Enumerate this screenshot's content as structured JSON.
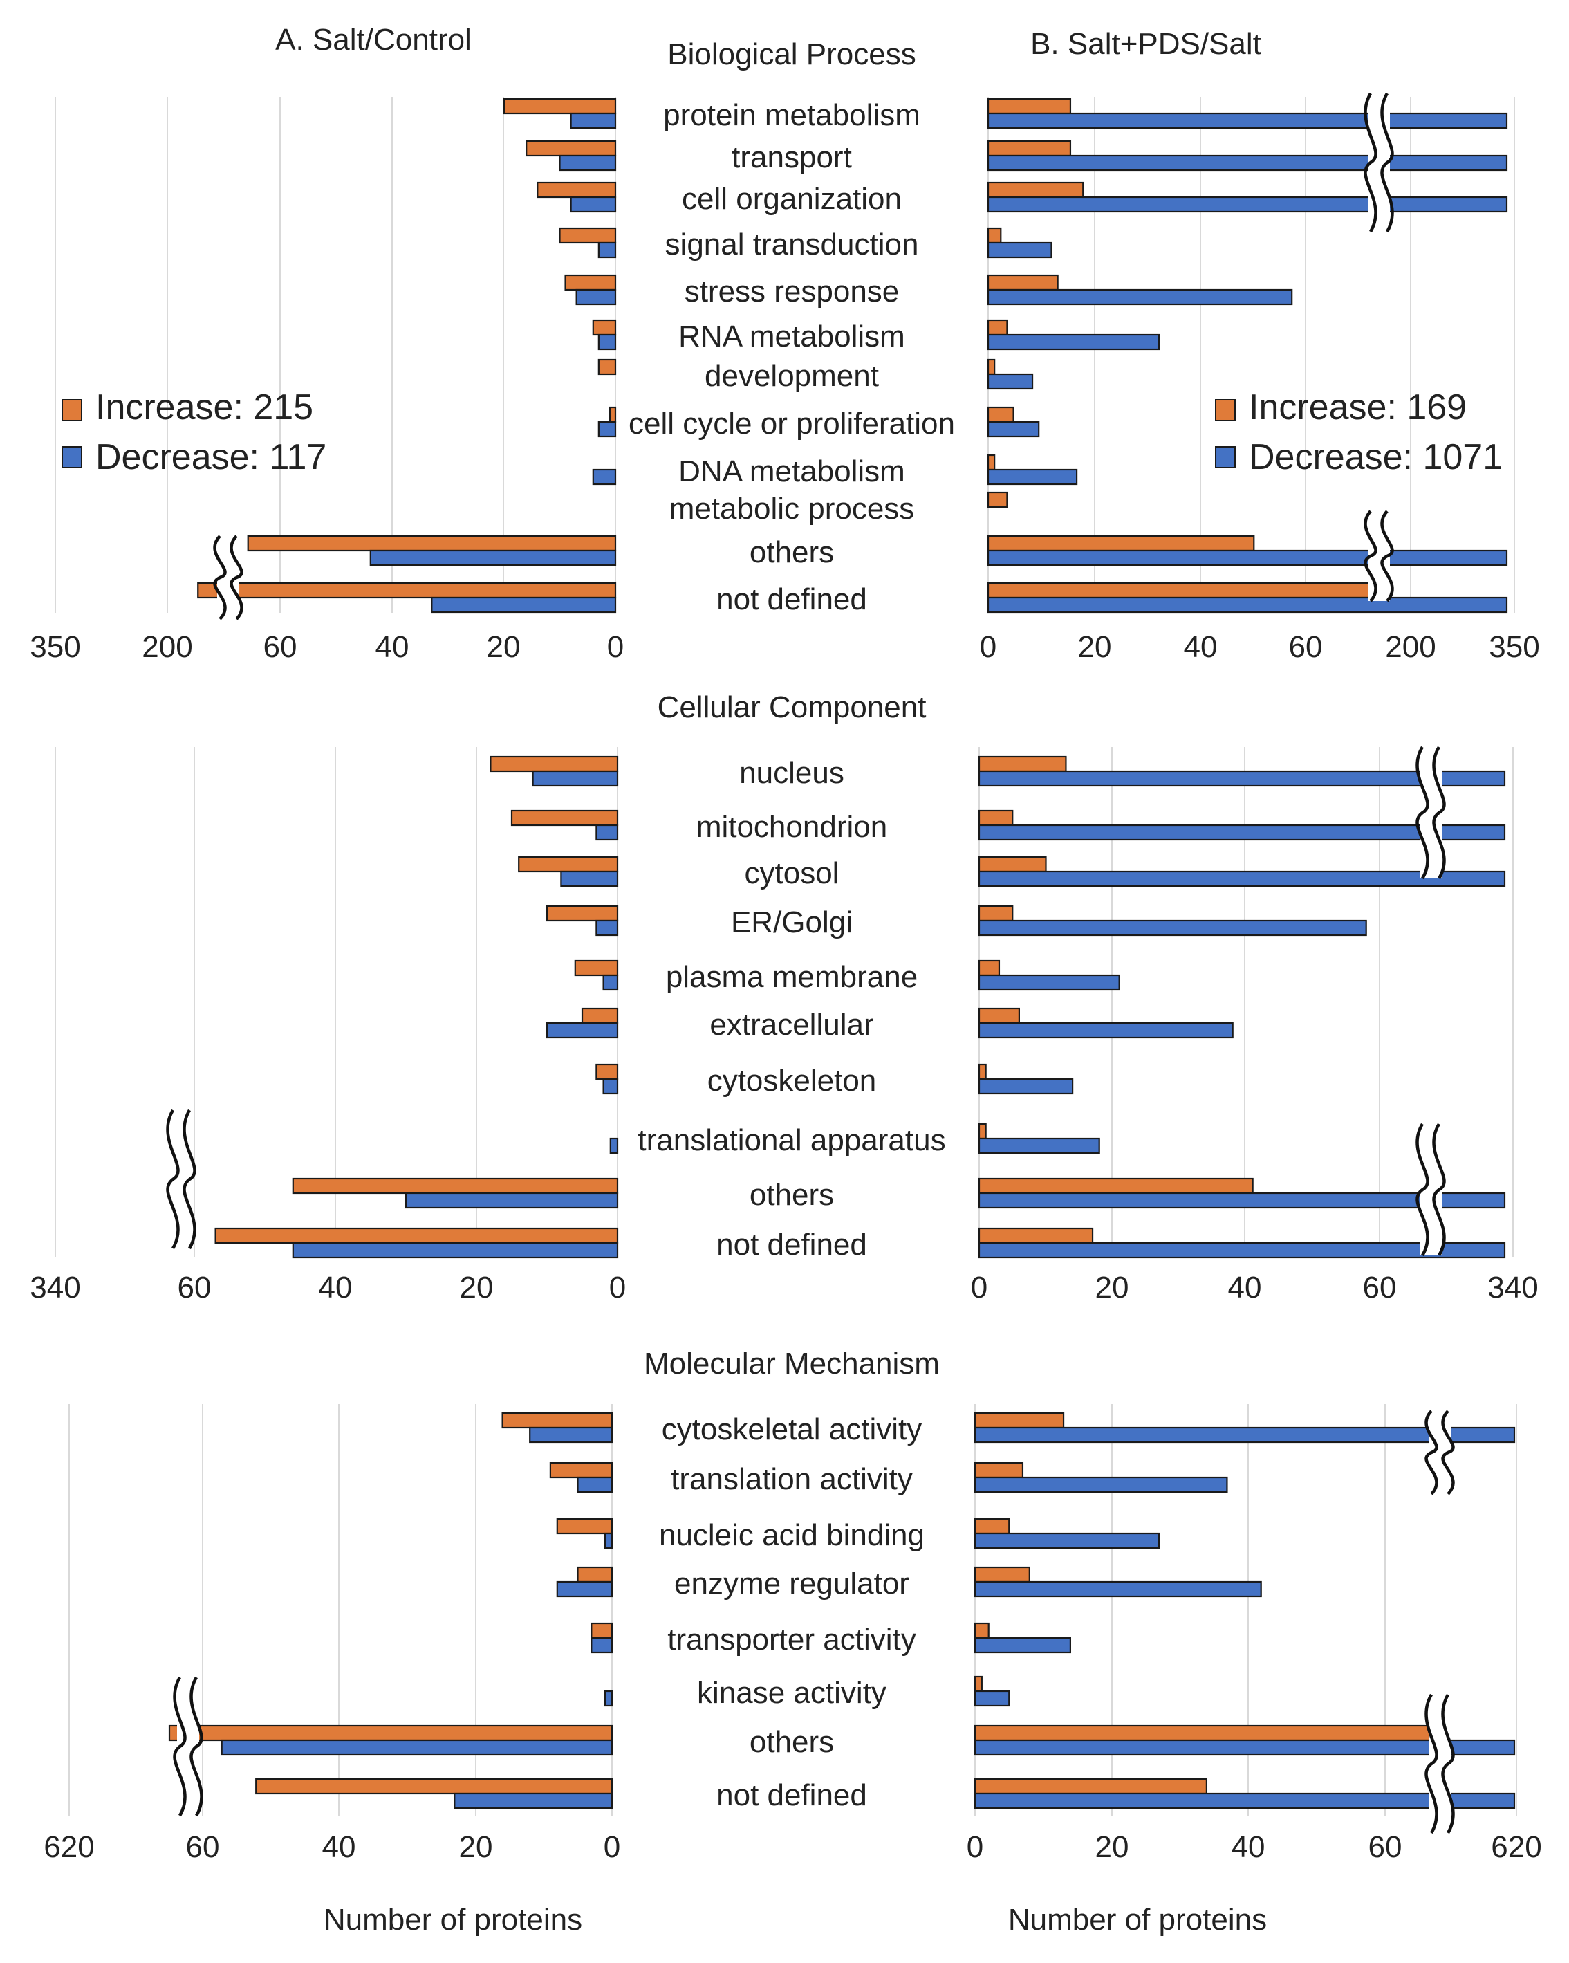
{
  "colors": {
    "increase": "#e07b39",
    "decrease": "#4472c4"
  },
  "panel_titles": {
    "left": "A. Salt/Control",
    "right": "B. Salt+PDS/Salt"
  },
  "legends": {
    "left": {
      "increase": "Increase: 215",
      "decrease": "Decrease: 117"
    },
    "right": {
      "increase": "Increase: 169",
      "decrease": "Decrease: 1071"
    }
  },
  "axis_labels": {
    "left": "Number of proteins",
    "right": "Number of proteins"
  },
  "chart_data": [
    {
      "type": "bar",
      "orientation": "horizontal",
      "title": "Biological Process",
      "categories": [
        "protein metabolism",
        "transport",
        "cell organization",
        "signal transduction",
        "stress response",
        "RNA metabolism",
        "development",
        "cell cycle or proliferation",
        "DNA metabolism",
        "metabolic process",
        "others",
        "not defined"
      ],
      "left": {
        "tick_labels": [
          "350",
          "200",
          "60",
          "40",
          "20",
          "0"
        ],
        "xlim": [
          0,
          70
        ],
        "axis_break": "beyond 60 (compressed to 200–350)",
        "series": [
          {
            "name": "Increase",
            "values": [
              20,
              16,
              14,
              10,
              9,
              4,
              3,
              1,
              0,
              0,
              66,
              75
            ]
          },
          {
            "name": "Decrease",
            "values": [
              8,
              10,
              8,
              3,
              7,
              3,
              0,
              3,
              4,
              0,
              44,
              33
            ]
          }
        ]
      },
      "right": {
        "tick_labels": [
          "0",
          "20",
          "40",
          "60",
          "200",
          "350"
        ],
        "xlim": [
          0,
          70
        ],
        "axis_break": "beyond 60 (compressed to 200–350)",
        "series": [
          {
            "name": "Increase",
            "values": [
              13,
              13,
              15,
              2,
              11,
              3,
              1,
              4,
              1,
              3,
              42,
              61
            ]
          },
          {
            "name": "Decrease",
            "values": [
              215,
              205,
              200,
              10,
              48,
              27,
              7,
              8,
              14,
              0,
              340,
              330
            ]
          }
        ]
      }
    },
    {
      "type": "bar",
      "orientation": "horizontal",
      "title": "Cellular Component",
      "categories": [
        "nucleus",
        "mitochondrion",
        "cytosol",
        "ER/Golgi",
        "plasma membrane",
        "extracellular",
        "cytoskeleton",
        "translational apparatus",
        "others",
        "not defined"
      ],
      "left": {
        "tick_labels": [
          "340",
          "60",
          "40",
          "20",
          "0"
        ],
        "xlim": [
          0,
          70
        ],
        "axis_break": "beyond 60 (compressed to 340)",
        "series": [
          {
            "name": "Increase",
            "values": [
              18,
              15,
              14,
              10,
              6,
              5,
              3,
              0,
              46,
              57
            ]
          },
          {
            "name": "Decrease",
            "values": [
              12,
              3,
              8,
              3,
              2,
              10,
              2,
              1,
              30,
              46
            ]
          }
        ]
      },
      "right": {
        "tick_labels": [
          "0",
          "20",
          "40",
          "60",
          "340"
        ],
        "xlim": [
          0,
          80
        ],
        "axis_break": "beyond 60 (compressed to 340)",
        "series": [
          {
            "name": "Increase",
            "values": [
              13,
              5,
              10,
              5,
              3,
              6,
              1,
              1,
              41,
              17
            ]
          },
          {
            "name": "Decrease",
            "values": [
              200,
              180,
              320,
              58,
              21,
              38,
              14,
              18,
              330,
              340
            ]
          }
        ]
      }
    },
    {
      "type": "bar",
      "orientation": "horizontal",
      "title": "Molecular Mechanism",
      "categories": [
        "cytoskeletal activity",
        "translation activity",
        "nucleic acid binding",
        "enzyme regulator",
        "transporter activity",
        "kinase activity",
        "others",
        "not defined"
      ],
      "left": {
        "tick_labels": [
          "620",
          "60",
          "40",
          "20",
          "0"
        ],
        "xlim": [
          0,
          80
        ],
        "axis_break": "beyond 60 (compressed to 620)",
        "series": [
          {
            "name": "Increase",
            "values": [
              16,
              9,
              8,
              5,
              3,
              0,
              65,
              52
            ]
          },
          {
            "name": "Decrease",
            "values": [
              12,
              5,
              1,
              8,
              3,
              1,
              57,
              23
            ]
          }
        ]
      },
      "right": {
        "tick_labels": [
          "0",
          "20",
          "40",
          "60",
          "620"
        ],
        "xlim": [
          0,
          80
        ],
        "axis_break": "beyond 60 (compressed to 620)",
        "series": [
          {
            "name": "Increase",
            "values": [
              13,
              7,
              5,
              8,
              2,
              1,
              69,
              34
            ]
          },
          {
            "name": "Decrease",
            "values": [
              200,
              37,
              27,
              42,
              14,
              5,
              620,
              200
            ]
          }
        ]
      }
    }
  ]
}
